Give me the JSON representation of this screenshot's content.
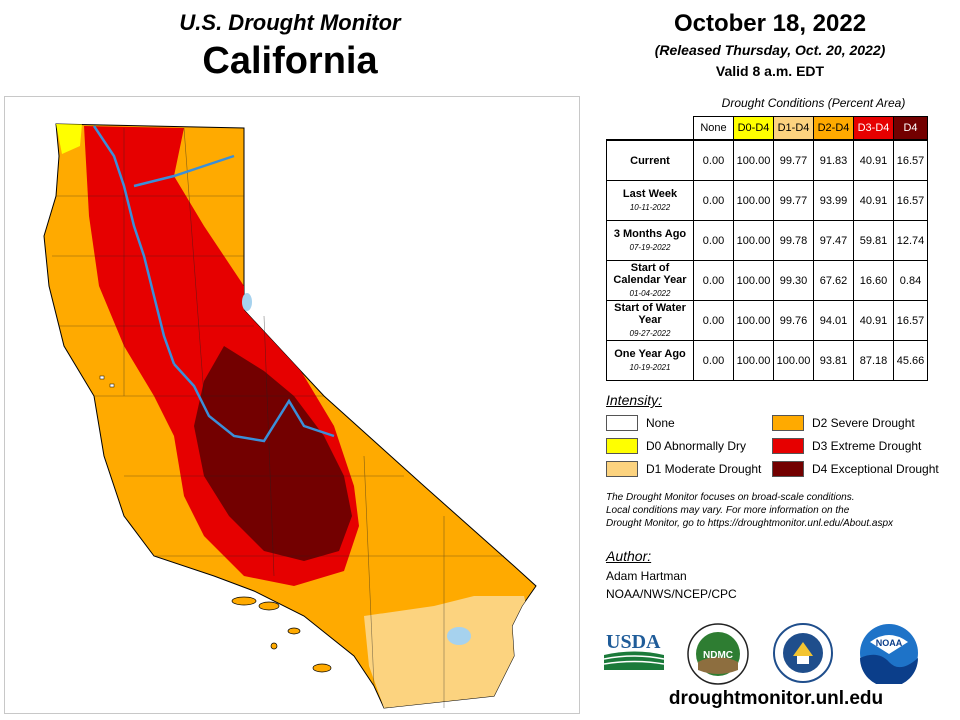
{
  "header": {
    "supertitle": "U.S. Drought Monitor",
    "state": "California",
    "date": "October 18, 2022",
    "released": "(Released Thursday, Oct. 20, 2022)",
    "valid": "Valid 8 a.m. EDT"
  },
  "table": {
    "caption": "Drought Conditions (Percent Area)",
    "columns": [
      {
        "label": "None",
        "color": "#ffffff"
      },
      {
        "label": "D0-D4",
        "color": "#ffff00"
      },
      {
        "label": "D1-D4",
        "color": "#fcd37f"
      },
      {
        "label": "D2-D4",
        "color": "#ffaa00"
      },
      {
        "label": "D3-D4",
        "color": "#e60000"
      },
      {
        "label": "D4",
        "color": "#730000"
      }
    ],
    "rows": [
      {
        "label": "Current",
        "sub": "",
        "values": [
          "0.00",
          "100.00",
          "99.77",
          "91.83",
          "40.91",
          "16.57"
        ]
      },
      {
        "label": "Last Week",
        "sub": "10-11-2022",
        "values": [
          "0.00",
          "100.00",
          "99.77",
          "93.99",
          "40.91",
          "16.57"
        ]
      },
      {
        "label": "3 Months Ago",
        "sub": "07-19-2022",
        "values": [
          "0.00",
          "100.00",
          "99.78",
          "97.47",
          "59.81",
          "12.74"
        ]
      },
      {
        "label": "Start of Calendar Year",
        "sub": "01-04-2022",
        "values": [
          "0.00",
          "100.00",
          "99.30",
          "67.62",
          "16.60",
          "0.84"
        ]
      },
      {
        "label": "Start of Water Year",
        "sub": "09-27-2022",
        "values": [
          "0.00",
          "100.00",
          "99.76",
          "94.01",
          "40.91",
          "16.57"
        ]
      },
      {
        "label": "One Year Ago",
        "sub": "10-19-2021",
        "values": [
          "0.00",
          "100.00",
          "100.00",
          "93.81",
          "87.18",
          "45.66"
        ]
      }
    ]
  },
  "legend": {
    "title": "Intensity:",
    "items": [
      {
        "label": "None",
        "color": "#ffffff"
      },
      {
        "label": "D0 Abnormally Dry",
        "color": "#ffff00"
      },
      {
        "label": "D1 Moderate Drought",
        "color": "#fcd37f"
      },
      {
        "label": "D2 Severe Drought",
        "color": "#ffaa00"
      },
      {
        "label": "D3 Extreme Drought",
        "color": "#e60000"
      },
      {
        "label": "D4 Exceptional Drought",
        "color": "#730000"
      }
    ]
  },
  "note": {
    "line1": "The Drought Monitor focuses on broad-scale conditions.",
    "line2": "Local conditions may vary. For more information on the",
    "line3": "Drought Monitor, go to https://droughtmonitor.unl.edu/About.aspx"
  },
  "author": {
    "title": "Author:",
    "name": "Adam Hartman",
    "org": "NOAA/NWS/NCEP/CPC"
  },
  "logos": {
    "usda": "USDA",
    "ndmc": "NDMC",
    "noaa": "NOAA"
  },
  "footer": {
    "url": "droughtmonitor.unl.edu"
  }
}
